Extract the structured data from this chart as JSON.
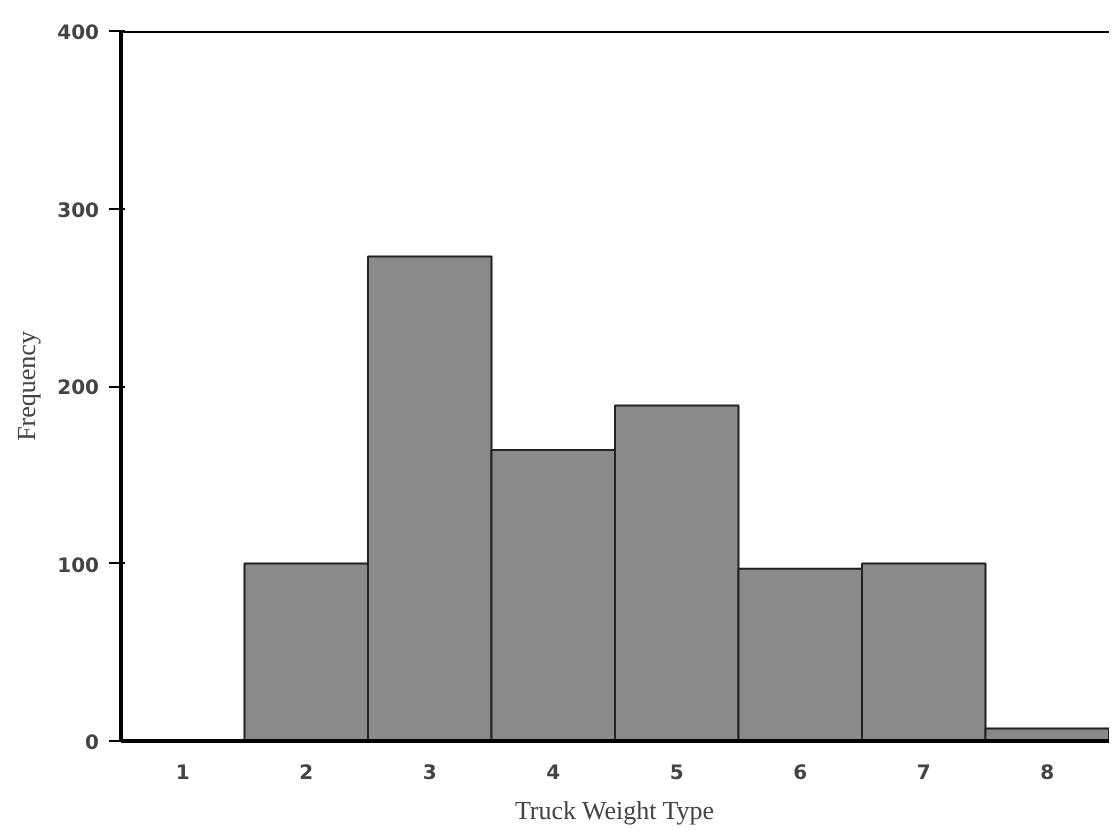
{
  "chart_data": {
    "type": "bar",
    "xlabel": "Truck Weight Type",
    "ylabel": "Frequency",
    "categories": [
      "1",
      "2",
      "3",
      "4",
      "5",
      "6",
      "7",
      "8"
    ],
    "values": [
      0,
      100,
      273,
      164,
      189,
      97,
      100,
      7
    ],
    "color": "#8a8a8a",
    "ylim": [
      0,
      400
    ],
    "yticks": [
      0,
      100,
      200,
      300,
      400
    ],
    "grid": false
  }
}
